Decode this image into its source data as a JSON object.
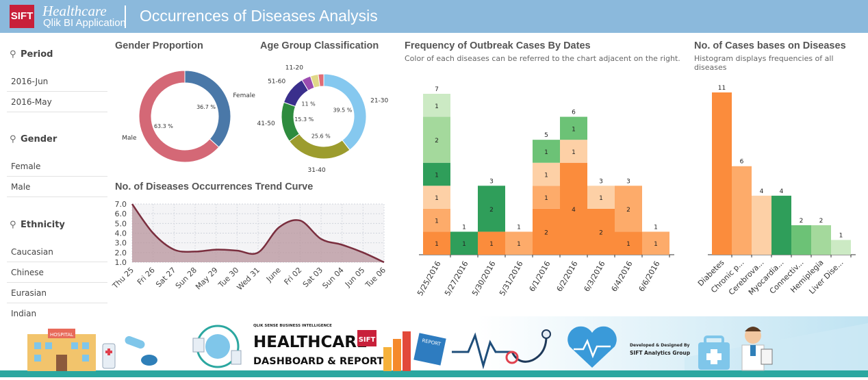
{
  "header": {
    "logo_text": "SIFT",
    "app_line1": "Healthcare",
    "app_line2": "Qlik BI Application",
    "title": "Occurrences of Diseases Analysis"
  },
  "sidebar": {
    "period": {
      "label": "Period",
      "items": [
        "2016-Jun",
        "2016-May"
      ]
    },
    "gender": {
      "label": "Gender",
      "items": [
        "Female",
        "Male"
      ]
    },
    "ethnicity": {
      "label": "Ethnicity",
      "items": [
        "Caucasian",
        "Chinese",
        "Eurasian",
        "Indian"
      ]
    }
  },
  "panels": {
    "gender": {
      "title": "Gender Proportion"
    },
    "age": {
      "title": "Age Group Classification"
    },
    "trend": {
      "title": "No. of Diseases Occurrences Trend Curve"
    },
    "freq": {
      "title": "Frequency of Outbreak Cases By Dates",
      "subtitle": "Color of each diseases can be referred to the chart adjacent on the right."
    },
    "cases": {
      "title": "No. of Cases bases on Diseases",
      "subtitle": "Histogram displays frequencies of all diseases"
    }
  },
  "footer": {
    "line1": "QLIK SENSE BUSINESS INTELLIGENCE",
    "line2": "HEALTHCARE",
    "line3": "DASHBOARD & REPORTS",
    "badge": "SIFT",
    "report": "REPORT",
    "credit1": "Developed & Designed By",
    "credit2": "SIFT Analytics Group",
    "hospital_sign": "HOSPITAL"
  },
  "colors": {
    "header_bg": "#8bb9dc",
    "female": "#4a78a8",
    "male": "#d46876",
    "trend_fill": "#b8949c",
    "trend_line": "#7a2e3e",
    "d_diabetes": "#fb8c3c",
    "d_chronic": "#fdab6a",
    "d_cerebro": "#fdd0a6",
    "d_myocardial": "#2f9e5a",
    "d_connective": "#6cc276",
    "d_hemiplegia": "#a4d99c",
    "d_liver": "#cceac4"
  },
  "chart_data": [
    {
      "type": "pie",
      "title": "Gender Proportion",
      "categories": [
        "Female",
        "Male"
      ],
      "values": [
        36.7,
        63.3
      ],
      "value_labels": [
        "36.7 %",
        "63.3 %"
      ],
      "colors": [
        "#4a78a8",
        "#d46876"
      ]
    },
    {
      "type": "pie",
      "title": "Age Group Classification",
      "categories": [
        "21-30",
        "31-40",
        "41-50",
        "51-60",
        "11-20",
        "",
        ""
      ],
      "values": [
        39.5,
        25.6,
        15.3,
        11.0,
        3.5,
        3.0,
        2.1
      ],
      "value_labels": [
        "39.5 %",
        "25.6 %",
        "15.3 %",
        "11 %",
        "",
        "",
        ""
      ],
      "colors": [
        "#85c8ef",
        "#9c9c2e",
        "#2e8b3e",
        "#3a2f8c",
        "#9b4cb0",
        "#e0d888",
        "#e06c76"
      ]
    },
    {
      "type": "area",
      "title": "No. of Diseases Occurrences Trend Curve",
      "categories": [
        "Thu 25",
        "Fri 26",
        "Sat 27",
        "Sun 28",
        "May 29",
        "Tue 30",
        "Wed 31",
        "June",
        "Fri 02",
        "Sat 03",
        "Sun 04",
        "Jun 05",
        "Tue 06"
      ],
      "values": [
        7.0,
        4.0,
        2.3,
        2.1,
        2.3,
        2.2,
        2.0,
        4.6,
        5.3,
        3.4,
        2.8,
        2.0,
        1.0
      ],
      "ylim": [
        1.0,
        7.0
      ],
      "ticks": [
        "7.0",
        "6.0",
        "5.0",
        "4.0",
        "3.0",
        "2.0",
        "1.0"
      ],
      "grid": true
    },
    {
      "type": "bar",
      "stacked": true,
      "title": "Frequency of Outbreak Cases By Dates",
      "categories": [
        "5/25/2016",
        "5/27/2016",
        "5/30/2016",
        "5/31/2016",
        "6/1/2016",
        "6/2/2016",
        "6/3/2016",
        "6/4/2016",
        "6/6/2016"
      ],
      "totals": [
        7,
        1,
        3,
        1,
        5,
        6,
        3,
        3,
        1
      ],
      "stacks": [
        [
          {
            "d": "d_diabetes",
            "v": 1
          },
          {
            "d": "d_chronic",
            "v": 1
          },
          {
            "d": "d_cerebro",
            "v": 1
          },
          {
            "d": "d_myocardial",
            "v": 1
          },
          {
            "d": "d_hemiplegia",
            "v": 2
          },
          {
            "d": "d_liver",
            "v": 1
          }
        ],
        [
          {
            "d": "d_myocardial",
            "v": 1
          }
        ],
        [
          {
            "d": "d_diabetes",
            "v": 1
          },
          {
            "d": "d_myocardial",
            "v": 2
          }
        ],
        [
          {
            "d": "d_chronic",
            "v": 1
          }
        ],
        [
          {
            "d": "d_diabetes",
            "v": 2
          },
          {
            "d": "d_chronic",
            "v": 1
          },
          {
            "d": "d_cerebro",
            "v": 1
          },
          {
            "d": "d_connective",
            "v": 1
          }
        ],
        [
          {
            "d": "d_diabetes",
            "v": 4
          },
          {
            "d": "d_cerebro",
            "v": 1
          },
          {
            "d": "d_connective",
            "v": 1
          }
        ],
        [
          {
            "d": "d_diabetes",
            "v": 2
          },
          {
            "d": "d_cerebro",
            "v": 1
          }
        ],
        [
          {
            "d": "d_diabetes",
            "v": 1
          },
          {
            "d": "d_chronic",
            "v": 2
          }
        ],
        [
          {
            "d": "d_chronic",
            "v": 1
          }
        ]
      ]
    },
    {
      "type": "bar",
      "title": "No. of Cases bases on Diseases",
      "categories": [
        "Diabetes",
        "Chronic p...",
        "Cerebrova...",
        "Myocardia...",
        "Connectiv...",
        "Hemiplegia",
        "Liver Dise..."
      ],
      "values": [
        11,
        6,
        4,
        4,
        2,
        2,
        1
      ],
      "colors": [
        "#fb8c3c",
        "#fdab6a",
        "#fdd0a6",
        "#2f9e5a",
        "#6cc276",
        "#a4d99c",
        "#cceac4"
      ]
    }
  ]
}
